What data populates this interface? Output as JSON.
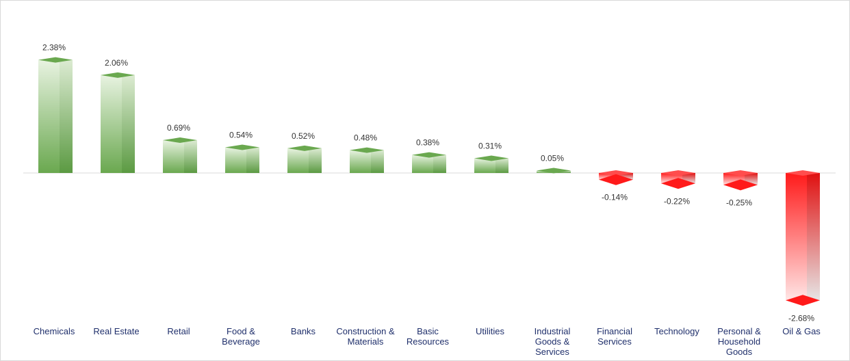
{
  "chart_data": {
    "type": "bar",
    "categories": [
      "Chemicals",
      "Real Estate",
      "Retail",
      "Food &\nBeverage",
      "Banks",
      "Construction &\nMaterials",
      "Basic\nResources",
      "Utilities",
      "Industrial\nGoods &\nServices",
      "Financial\nServices",
      "Technology",
      "Personal &\nHousehold\nGoods",
      "Oil & Gas"
    ],
    "values": [
      2.38,
      2.06,
      0.69,
      0.54,
      0.52,
      0.48,
      0.38,
      0.31,
      0.05,
      -0.14,
      -0.22,
      -0.25,
      -2.68
    ],
    "value_labels": [
      "2.38%",
      "2.06%",
      "0.69%",
      "0.54%",
      "0.52%",
      "0.48%",
      "0.38%",
      "0.31%",
      "0.05%",
      "-0.14%",
      "-0.22%",
      "-0.25%",
      "-2.68%"
    ],
    "title": "",
    "xlabel": "",
    "ylabel": "",
    "grid": false,
    "legend": "none",
    "colors": {
      "positive": "#6aa84f",
      "positive_light": "#e8f3e1",
      "negative": "#ff1a1a",
      "negative_light": "#ffe6e6",
      "axis": "#d9d9d9",
      "category_text": "#1f2f6b",
      "value_text": "#333333"
    }
  }
}
